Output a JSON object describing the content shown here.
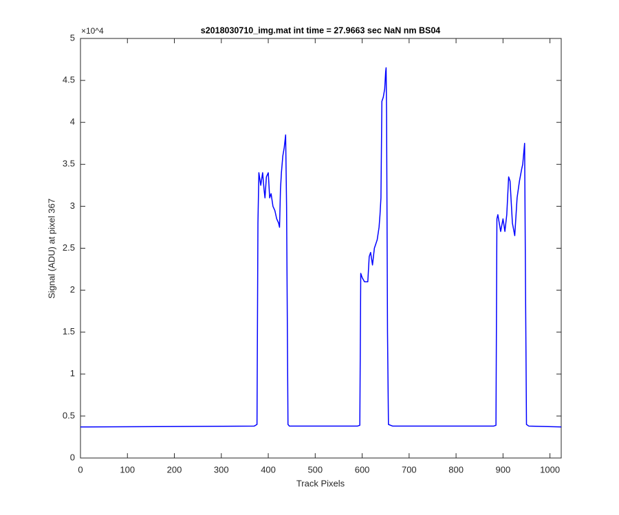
{
  "chart_data": {
    "type": "line",
    "title": "s2018030710_img.mat int time = 27.9663 sec  NaN nm BS04",
    "xlabel": "Track Pixels",
    "ylabel": "Signal (ADU) at pixel 367",
    "y_exponent_label": "×10^4",
    "xlim": [
      0,
      1024
    ],
    "xticks": [
      0,
      100,
      200,
      300,
      400,
      500,
      600,
      700,
      800,
      900,
      1000
    ],
    "ylim": [
      0,
      5
    ],
    "yticks": [
      0,
      0.5,
      1,
      1.5,
      2,
      2.5,
      3,
      3.5,
      4,
      4.5,
      5
    ],
    "grid": false,
    "series": [
      {
        "name": "signal",
        "color": "#0000ff",
        "x": [
          0,
          370,
          376,
          378,
          380,
          384,
          388,
          391,
          393,
          396,
          400,
          403,
          406,
          410,
          414,
          418,
          422,
          424,
          426,
          428,
          431,
          434,
          437,
          439,
          442,
          445,
          590,
          595,
          597,
          600,
          605,
          612,
          615,
          618,
          622,
          626,
          629,
          632,
          636,
          638,
          640,
          642,
          645,
          648,
          650,
          651,
          652,
          654,
          656,
          665,
          880,
          885,
          887,
          889,
          892,
          895,
          900,
          904,
          908,
          912,
          915,
          918,
          920,
          925,
          930,
          935,
          940,
          942,
          946,
          948,
          950,
          955,
          1024
        ],
        "values": [
          0.37,
          0.38,
          0.4,
          2.8,
          3.4,
          3.25,
          3.4,
          3.2,
          3.1,
          3.35,
          3.4,
          3.1,
          3.15,
          3.0,
          2.95,
          2.85,
          2.8,
          2.75,
          3.2,
          3.4,
          3.6,
          3.7,
          3.85,
          3.0,
          0.4,
          0.38,
          0.38,
          0.39,
          2.2,
          2.15,
          2.1,
          2.1,
          2.4,
          2.45,
          2.3,
          2.5,
          2.55,
          2.6,
          2.75,
          2.9,
          3.1,
          4.25,
          4.3,
          4.4,
          4.6,
          4.65,
          4.1,
          1.5,
          0.4,
          0.38,
          0.38,
          0.39,
          2.85,
          2.9,
          2.8,
          2.7,
          2.85,
          2.7,
          2.9,
          3.35,
          3.3,
          3.0,
          2.8,
          2.65,
          3.1,
          3.3,
          3.45,
          3.5,
          3.75,
          2.0,
          0.4,
          0.38,
          0.37
        ]
      }
    ]
  }
}
